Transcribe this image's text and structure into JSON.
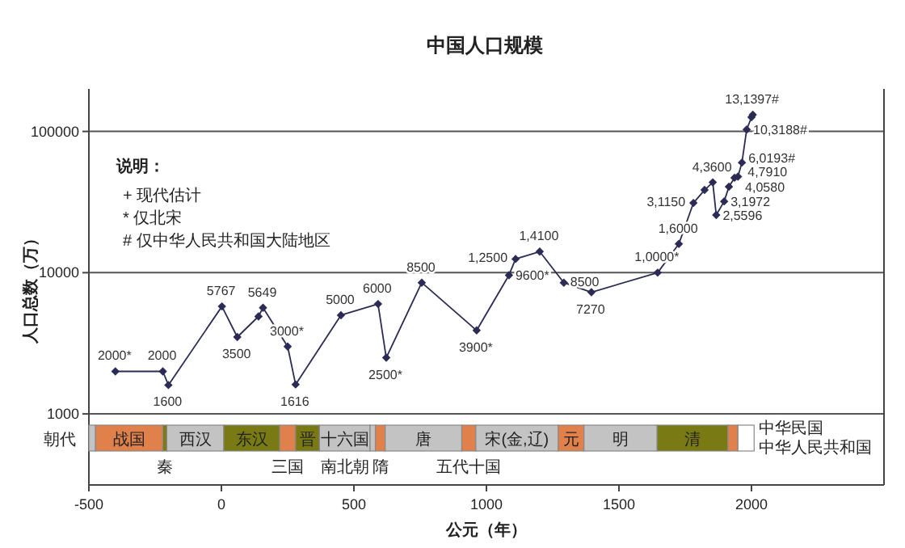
{
  "chart_data": {
    "type": "line",
    "title": "中国人口规模",
    "xlabel": "公元（年）",
    "ylabel": "人口总数（万）",
    "xlim": [
      -500,
      2500
    ],
    "xticks": [
      -500,
      0,
      500,
      1000,
      1500,
      2000
    ],
    "ylim": [
      314,
      200000
    ],
    "yticks": [
      1000,
      10000,
      100000
    ],
    "log": "y",
    "grid": "y",
    "marker": "diamond",
    "x": [
      -400,
      -221,
      -200,
      2,
      60,
      140,
      157,
      250,
      280,
      451,
      591,
      622,
      756,
      963,
      1085,
      1110,
      1201,
      1292,
      1396,
      1646,
      1726,
      1781,
      1823,
      1854,
      1867,
      1897,
      1915,
      1936,
      1949,
      1964,
      1982,
      2000,
      2005
    ],
    "series": [
      {
        "color": "#2b2b55",
        "values": [
          2000,
          2000,
          1600,
          5767,
          3500,
          4900,
          5649,
          3000,
          1616,
          5000,
          6000,
          2500,
          8500,
          3900,
          9600,
          12500,
          14100,
          8500,
          7270,
          10000,
          16000,
          31150,
          38500,
          43600,
          25596,
          31972,
          40580,
          47000,
          47910,
          60193,
          103188,
          126000,
          131397
        ],
        "value_labels": [
          "2000*",
          "2000",
          "1600",
          "5767",
          "3500",
          null,
          "5649",
          "3000*",
          "1616",
          "5000",
          "6000",
          "2500*",
          "8500",
          "3900*",
          "9600*",
          "1,2500",
          "1,4100",
          "8500",
          "7270",
          "1,0000*",
          "1,6000",
          "3,1150",
          null,
          "4,3600",
          "2,5596",
          "3,1972",
          "4,0580",
          null,
          "4,7910",
          "6,0193#",
          "10,3188#",
          null,
          "13,1397#"
        ]
      }
    ],
    "bands": [
      {
        "axis": "x",
        "from": -500,
        "to": -475,
        "label": null,
        "color": "#c3c3c3"
      },
      {
        "axis": "x",
        "from": -475,
        "to": -221,
        "label": "战国",
        "color": "#e0804a"
      },
      {
        "axis": "x",
        "from": -221,
        "to": -206,
        "label": "秦",
        "color": "#7a7a14"
      },
      {
        "axis": "x",
        "from": -206,
        "to": 9,
        "label": "西汉",
        "color": "#c3c3c3"
      },
      {
        "axis": "x",
        "from": 9,
        "to": 220,
        "label": "东汉",
        "color": "#7a7a14"
      },
      {
        "axis": "x",
        "from": 220,
        "to": 280,
        "label": "三国",
        "color": "#e0804a"
      },
      {
        "axis": "x",
        "from": 280,
        "to": 370,
        "label": "晋",
        "color": "#7a7a14"
      },
      {
        "axis": "x",
        "from": 370,
        "to": 561,
        "label": "十六国",
        "color": "#c3c3c3"
      },
      {
        "axis": "x",
        "from": 561,
        "to": 581,
        "label": "南北朝",
        "color": "#c3c3c3"
      },
      {
        "axis": "x",
        "from": 581,
        "to": 618,
        "label": "隋",
        "color": "#e0804a"
      },
      {
        "axis": "x",
        "from": 618,
        "to": 907,
        "label": "唐",
        "color": "#c3c3c3"
      },
      {
        "axis": "x",
        "from": 907,
        "to": 960,
        "label": "五代十国",
        "color": "#e0804a"
      },
      {
        "axis": "x",
        "from": 960,
        "to": 1271,
        "label": "宋(金,辽)",
        "color": "#c3c3c3"
      },
      {
        "axis": "x",
        "from": 1271,
        "to": 1368,
        "label": "元",
        "color": "#e0804a"
      },
      {
        "axis": "x",
        "from": 1368,
        "to": 1644,
        "label": "明",
        "color": "#c3c3c3"
      },
      {
        "axis": "x",
        "from": 1644,
        "to": 1911,
        "label": "清",
        "color": "#7a7a14"
      },
      {
        "axis": "x",
        "from": 1911,
        "to": 1949,
        "label": "中华民国",
        "color": "#e0804a"
      },
      {
        "axis": "x",
        "from": 1949,
        "to": 2010,
        "label": "中华人民共和国",
        "color": "#ffffff"
      }
    ],
    "annotations": [
      "朝代",
      "说明：",
      "+ 现代估计",
      "* 仅北宋",
      "# 仅中华人民共和国大陆地区"
    ]
  }
}
